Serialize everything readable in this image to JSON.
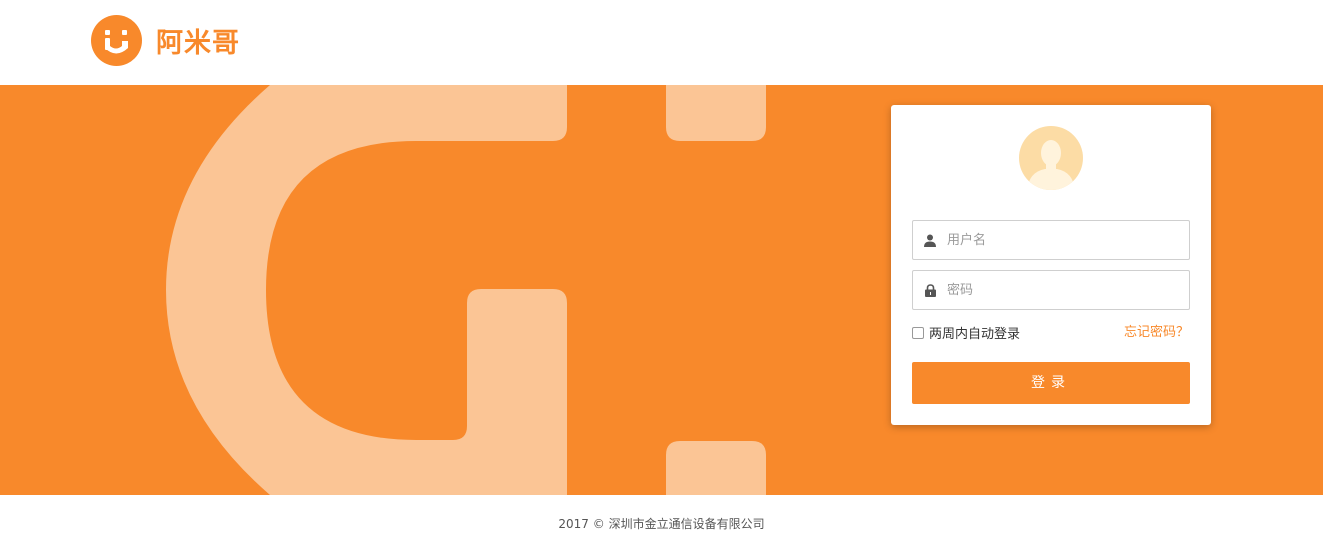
{
  "header": {
    "logo_text": "阿米哥",
    "logo_icon": "smile-logo-icon"
  },
  "login": {
    "avatar_icon": "user-avatar-icon",
    "username_placeholder": "用户名",
    "password_placeholder": "密码",
    "remember_label": "两周内自动登录",
    "forgot_label": "忘记密码？",
    "submit_label": "登录"
  },
  "footer": {
    "copyright": "2017 © 深圳市金立通信设备有限公司"
  },
  "colors": {
    "brand": "#f8892b",
    "brand_light": "#fbc595"
  }
}
